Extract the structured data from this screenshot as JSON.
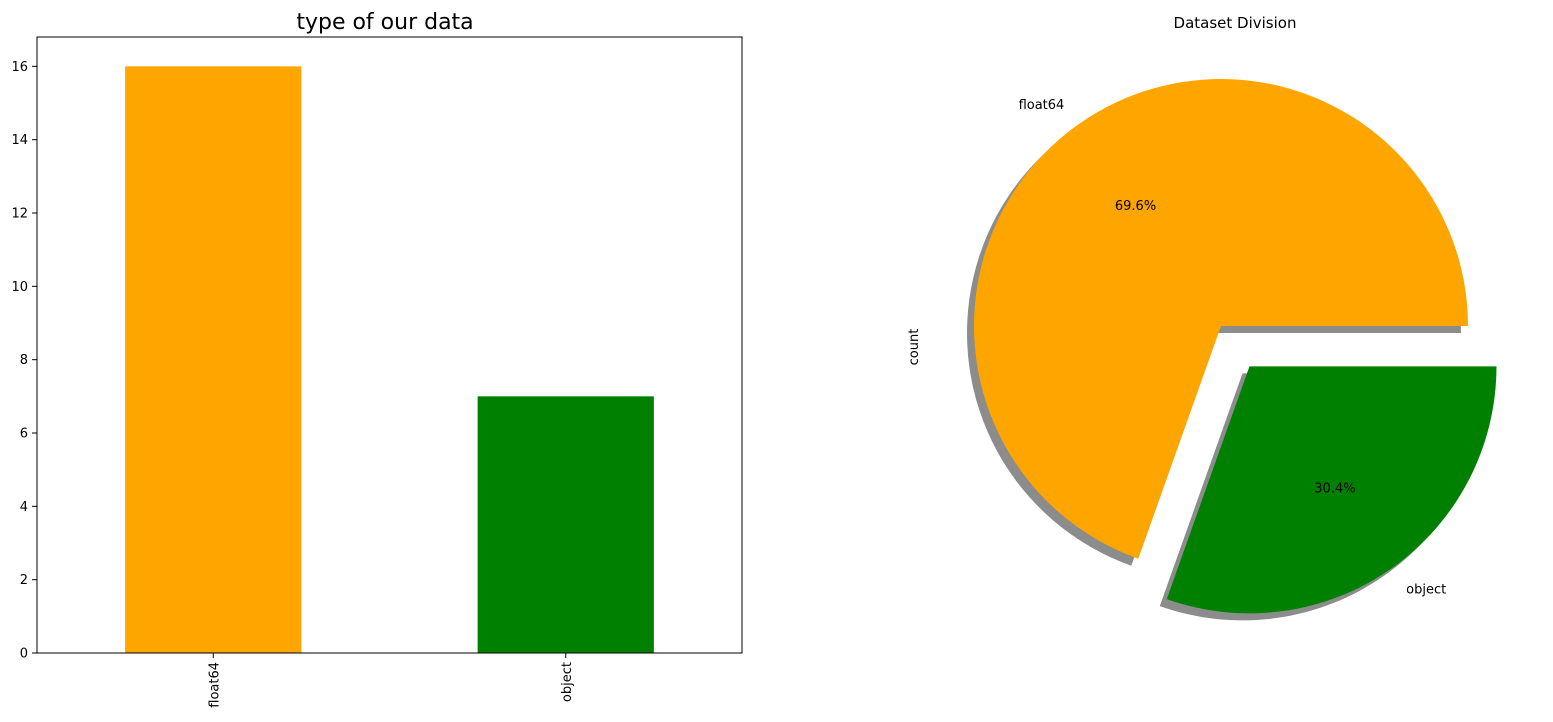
{
  "chart_data": [
    {
      "type": "bar",
      "title": "type of our data",
      "xlabel": "",
      "ylabel": "",
      "categories": [
        "float64",
        "object"
      ],
      "values": [
        16,
        7
      ],
      "colors": [
        "#FFA500",
        "#008000"
      ],
      "ylim": [
        0,
        16.8
      ],
      "yticks": [
        0,
        2,
        4,
        6,
        8,
        10,
        12,
        14,
        16
      ],
      "grid": false,
      "legend": "none"
    },
    {
      "type": "pie",
      "title": "Dataset Division",
      "ylabel": "count",
      "labels": [
        "float64",
        "object"
      ],
      "values": [
        16,
        7
      ],
      "percent_labels": [
        "69.6%",
        "30.4%"
      ],
      "colors": [
        "#FFA500",
        "#008000"
      ],
      "explode": [
        0,
        0.2
      ],
      "shadow": true,
      "legend": "none"
    }
  ]
}
